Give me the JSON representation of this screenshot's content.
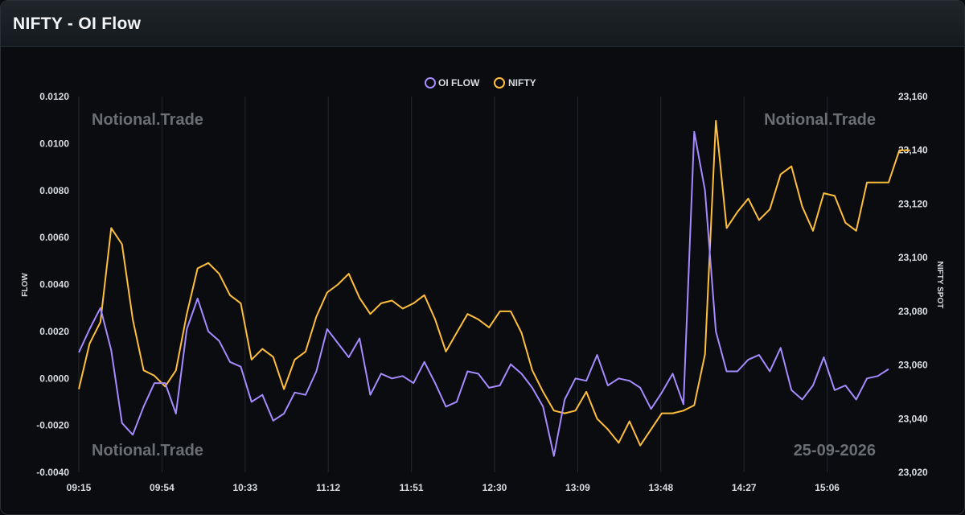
{
  "header": {
    "title": "NIFTY - OI Flow"
  },
  "watermarks": {
    "top_left": "Notional.Trade",
    "top_right": "Notional.Trade",
    "bottom_left": "Notional.Trade",
    "bottom_right": "25-09-2026"
  },
  "colors": {
    "oi_flow": "#a58bff",
    "nifty": "#ffbf3a",
    "grid": "#24272d",
    "background": "#0b0c0f"
  },
  "chart_data": {
    "type": "line",
    "x_ticks": [
      "09:15",
      "09:54",
      "10:33",
      "11:12",
      "11:51",
      "12:30",
      "13:09",
      "13:48",
      "14:27",
      "15:06"
    ],
    "ylabel": "FLOW",
    "y2label": "NIFTY SPOT",
    "ylim": [
      -0.004,
      0.012
    ],
    "y2lim": [
      23020,
      23160
    ],
    "y_ticks": [
      "0.0120",
      "0.0100",
      "0.0080",
      "0.0060",
      "0.0040",
      "0.0020",
      "0.0000",
      "-0.0020",
      "-0.0040"
    ],
    "y2_ticks": [
      "23,160",
      "23,140",
      "23,120",
      "23,100",
      "23,080",
      "23,060",
      "23,040",
      "23,020"
    ],
    "legend": "top-center",
    "grid": "vertical",
    "series": [
      {
        "name": "OI FLOW",
        "axis": "left",
        "values": [
          0.0011,
          0.0021,
          0.003,
          0.0012,
          -0.0019,
          -0.0024,
          -0.0012,
          -0.0002,
          -0.0002,
          -0.0015,
          0.0021,
          0.0034,
          0.002,
          0.0016,
          0.0007,
          0.0005,
          -0.001,
          -0.0007,
          -0.0018,
          -0.0015,
          -0.0006,
          -0.0007,
          0.0003,
          0.0021,
          0.0015,
          0.0009,
          0.0017,
          -0.0007,
          0.0002,
          0.0,
          0.0001,
          -0.0002,
          0.0007,
          -0.0002,
          -0.0012,
          -0.001,
          0.0003,
          0.0002,
          -0.0004,
          -0.0003,
          0.0006,
          0.0002,
          -0.0004,
          -0.0012,
          -0.0033,
          -0.0009,
          0.0,
          -0.0001,
          0.001,
          -0.0003,
          0.0,
          -0.0001,
          -0.0004,
          -0.0013,
          -0.0006,
          0.0002,
          -0.0011,
          0.0105,
          0.008,
          0.002,
          0.0003,
          0.0003,
          0.0008,
          0.001,
          0.0003,
          0.0013,
          -0.0005,
          -0.0009,
          -0.0003,
          0.0009,
          -0.0005,
          -0.0003,
          -0.0009,
          0.0,
          0.0001,
          0.0004
        ]
      },
      {
        "name": "NIFTY",
        "axis": "right",
        "values": [
          23051,
          23068,
          23076,
          23111,
          23105,
          23077,
          23058,
          23056,
          23052,
          23058,
          23079,
          23096,
          23098,
          23094,
          23086,
          23083,
          23062,
          23066,
          23063,
          23051,
          23062,
          23065,
          23078,
          23087,
          23090,
          23094,
          23085,
          23079,
          23083,
          23084,
          23081,
          23083,
          23086,
          23077,
          23065,
          23072,
          23079,
          23077,
          23074,
          23080,
          23080,
          23072,
          23058,
          23050,
          23043,
          23042,
          23043,
          23050,
          23040,
          23036,
          23031,
          23039,
          23030,
          23036,
          23042,
          23042,
          23043,
          23045,
          23064,
          23151,
          23111,
          23117,
          23122,
          23114,
          23118,
          23131,
          23134,
          23119,
          23110,
          23124,
          23123,
          23113,
          23110,
          23128,
          23128,
          23128,
          23140,
          23140
        ]
      }
    ]
  }
}
